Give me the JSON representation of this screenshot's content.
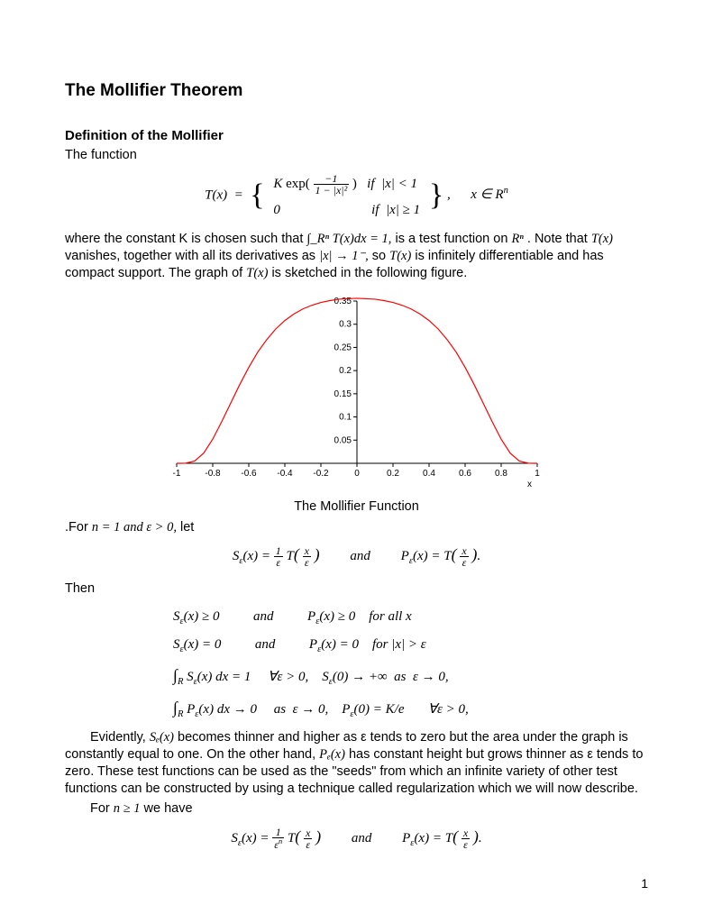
{
  "title": "The Mollifier Theorem",
  "section1": "Definition of the Mollifier",
  "intro": "The function",
  "eq1_lhs": "T(x) =",
  "eq1_case1": "K exp( −1 / (1 − |x|²) )   if  |x| < 1",
  "eq1_case2": "0                          if  |x| ≥ 1",
  "eq1_tail": ",      x ∈ Rⁿ",
  "para1_a": "where the constant K is chosen such that  ",
  "para1_int": "∫_Rⁿ T(x)dx = 1,",
  "para1_b": "  is a test function on ",
  "para1_rn": "Rⁿ",
  "para1_c": ". Note that ",
  "para1_Tx": "T(x)",
  "para1_d": " vanishes, together with all its derivatives as  ",
  "para1_lim": "|x| → 1⁻,",
  "para1_e": "  so ",
  "para1_f": " is infinitely differentiable and has compact support. The graph of ",
  "para1_g": " is sketched in the following figure.",
  "chart": {
    "type": "line",
    "xlim": [
      -1,
      1
    ],
    "ylim": [
      0,
      0.35
    ],
    "xticks": [
      -1,
      -0.8,
      -0.6,
      -0.4,
      -0.2,
      0,
      0.2,
      0.4,
      0.6,
      0.8,
      1
    ],
    "yticks": [
      0.05,
      0.1,
      0.15,
      0.2,
      0.25,
      0.3,
      0.35
    ],
    "xlabel": "x",
    "curve_color": "#ff0000",
    "axis_color": "#000000",
    "tick_color": "#000000",
    "background": "#ffffff",
    "label_fontsize": 10,
    "points_x": [
      -1,
      -0.98,
      -0.95,
      -0.9,
      -0.85,
      -0.8,
      -0.75,
      -0.7,
      -0.65,
      -0.6,
      -0.55,
      -0.5,
      -0.45,
      -0.4,
      -0.35,
      -0.3,
      -0.25,
      -0.2,
      -0.15,
      -0.1,
      -0.05,
      0,
      0.05,
      0.1,
      0.15,
      0.2,
      0.25,
      0.3,
      0.35,
      0.4,
      0.45,
      0.5,
      0.55,
      0.6,
      0.65,
      0.7,
      0.75,
      0.8,
      0.85,
      0.9,
      0.95,
      0.98,
      1
    ],
    "points_y": [
      0,
      1e-05,
      0.0003,
      0.005,
      0.022,
      0.052,
      0.09,
      0.13,
      0.17,
      0.207,
      0.24,
      0.267,
      0.29,
      0.308,
      0.322,
      0.333,
      0.341,
      0.347,
      0.351,
      0.354,
      0.355,
      0.356,
      0.355,
      0.354,
      0.351,
      0.347,
      0.341,
      0.333,
      0.322,
      0.308,
      0.29,
      0.267,
      0.24,
      0.207,
      0.17,
      0.13,
      0.09,
      0.052,
      0.022,
      0.005,
      0.0003,
      1e-05,
      0
    ]
  },
  "caption": "The Mollifier Function",
  "para2_a": ".For ",
  "para2_cond": "n = 1 and  ε > 0,",
  "para2_b": " let",
  "eq2": "Sₑ(x) = (1/ε) T( x/ε )          and          Pₑ(x) = T( x/ε ).",
  "then": "Then",
  "prop1": "Sₑ(x) ≥ 0          and          Pₑ(x) ≥ 0    for all x",
  "prop2": "Sₑ(x) = 0          and          Pₑ(x) = 0    for |x| > ε",
  "prop3": "∫_R Sₑ(x) dx = 1      ∀ε > 0,    Sₑ(0) → +∞  as  ε → 0,",
  "prop4": "∫_R Pₑ(x) dx → 0      as  ε → 0,    Pₑ(0) = K/e        ∀ε > 0,",
  "para3_a": "Evidently, ",
  "para3_se": "Sₑ(x)",
  "para3_b": " becomes thinner and higher as  ε  tends to zero but the area under the graph is constantly equal to one. On the other hand, ",
  "para3_pe": "Pₑ(x)",
  "para3_c": "  has constant height but grows thinner as  ε  tends to zero. These test functions can be used as the \"seeds\" from which an infinite variety of other test functions can be constructed by using a technique called regularization which we will now describe.",
  "para4_a": "For ",
  "para4_cond": "n ≥ 1",
  "para4_b": "  we have",
  "eq3": "Sₑ(x) = (1/εⁿ) T( x/ε )          and          Pₑ(x) = T( x/ε ).",
  "page_number": "1"
}
